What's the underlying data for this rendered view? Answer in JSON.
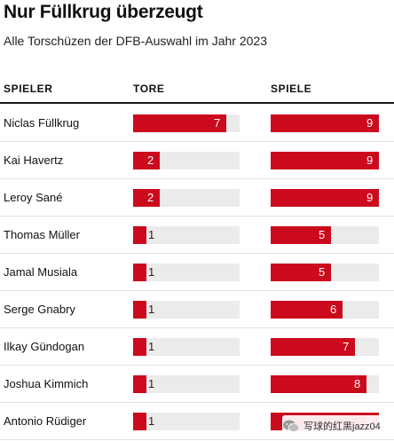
{
  "title": "Nur Füllkrug überzeugt",
  "subtitle": "Alle Torschüzen der DFB-Auswahl im Jahr 2023",
  "watermark": {
    "text": "写球的红黑jazz04",
    "icon": "wechat-icon"
  },
  "colors": {
    "bar": "#cc0a1d",
    "track": "#ebebeb",
    "rule": "#1a1a1a"
  },
  "chart_data": {
    "type": "bar",
    "orientation": "horizontal",
    "title": "Nur Füllkrug überzeugt",
    "subtitle": "Alle Torschüzen der DFB-Auswahl im Jahr 2023",
    "category_header": "SPIELER",
    "categories": [
      "Niclas Füllkrug",
      "Kai Havertz",
      "Leroy Sané",
      "Thomas Müller",
      "Jamal Musiala",
      "Serge Gnabry",
      "Ilkay Gündogan",
      "Joshua Kimmich",
      "Antonio Rüdiger"
    ],
    "series": [
      {
        "name": "TORE",
        "values": [
          7,
          2,
          2,
          1,
          1,
          1,
          1,
          1,
          1
        ],
        "max": 8
      },
      {
        "name": "SPIELE",
        "values": [
          9,
          9,
          9,
          5,
          5,
          6,
          7,
          8,
          9
        ],
        "max": 9
      }
    ],
    "data_labels": true,
    "grid": false
  }
}
